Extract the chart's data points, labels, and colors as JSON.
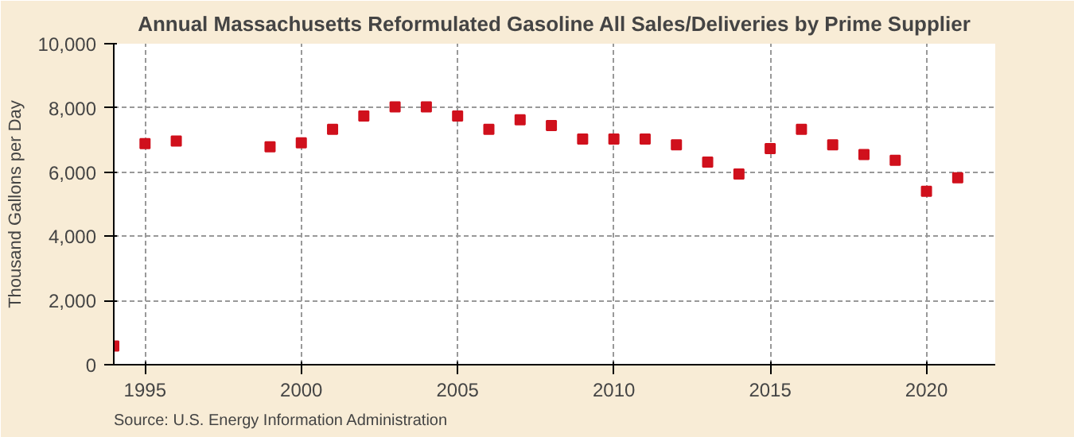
{
  "chart_data": {
    "type": "scatter",
    "title": "Annual Massachusetts Reformulated Gasoline All Sales/Deliveries by Prime Supplier",
    "ylabel": "Thousand Gallons per Day",
    "x": [
      1994,
      1995,
      1996,
      1999,
      2000,
      2001,
      2002,
      2003,
      2004,
      2005,
      2006,
      2007,
      2008,
      2009,
      2010,
      2011,
      2012,
      2013,
      2014,
      2015,
      2016,
      2017,
      2018,
      2019,
      2020,
      2021
    ],
    "series": [
      {
        "color": "#d0101c",
        "values": [
          580,
          6890,
          6970,
          6790,
          6910,
          7330,
          7750,
          8030,
          8030,
          7750,
          7330,
          7630,
          7450,
          7030,
          7030,
          7030,
          6850,
          6310,
          5940,
          6730,
          7330,
          6850,
          6550,
          6370,
          5400,
          5820
        ]
      }
    ],
    "xlim": [
      1994,
      2022.2
    ],
    "xticks": [
      1995,
      2000,
      2005,
      2010,
      2015,
      2020
    ],
    "ylim": [
      0,
      10000
    ],
    "yticks": [
      {
        "value": 0,
        "label": "0"
      },
      {
        "value": 2000,
        "label": "2,000"
      },
      {
        "value": 4000,
        "label": "4,000"
      },
      {
        "value": 6000,
        "label": "6,000"
      },
      {
        "value": 8000,
        "label": "8,000"
      },
      {
        "value": 10000,
        "label": "10,000"
      }
    ],
    "grid": true,
    "marker": "square",
    "annotations": [
      "Source: U.S. Energy Information Administration"
    ]
  }
}
